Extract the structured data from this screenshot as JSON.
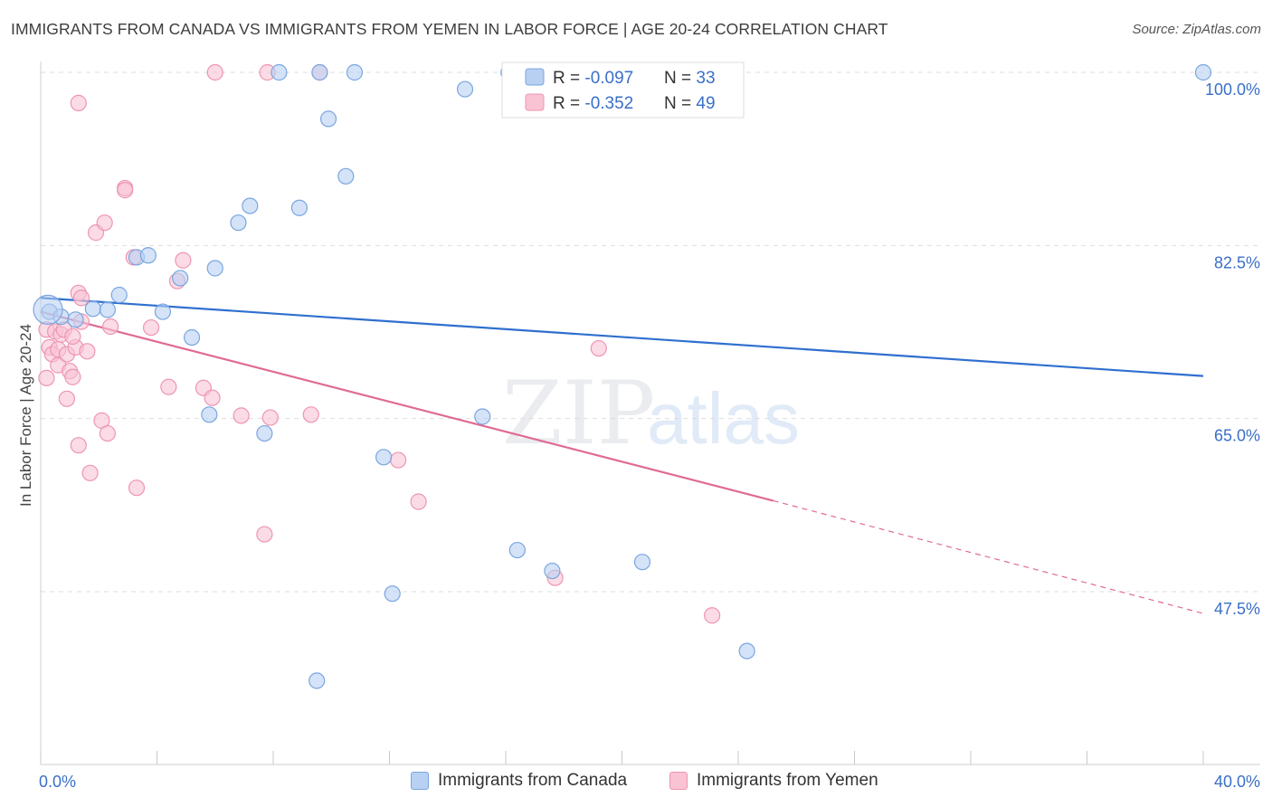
{
  "header": {
    "title": "IMMIGRANTS FROM CANADA VS IMMIGRANTS FROM YEMEN IN LABOR FORCE | AGE 20-24 CORRELATION CHART",
    "source": "Source: ZipAtlas.com"
  },
  "watermark": {
    "zip": "ZIP",
    "atlas": "atlas"
  },
  "legend_top": {
    "canada": {
      "r_label": "R = ",
      "r_value": "-0.097",
      "n_label": "N = ",
      "n_value": "33"
    },
    "yemen": {
      "r_label": "R = ",
      "r_value": "-0.352",
      "n_label": "N = ",
      "n_value": "49"
    }
  },
  "legend_bottom": {
    "canada": "Immigrants from Canada",
    "yemen": "Immigrants from Yemen"
  },
  "colors": {
    "canada_fill": "#b8d0f2",
    "canada_stroke": "#7aa6e0",
    "canada_line": "#2f6fcf",
    "yemen_fill": "#f9c3d4",
    "yemen_stroke": "#ee95b2",
    "yemen_line": "#e06a93",
    "tick_label": "#3a6fc8",
    "grid": "#dddddd"
  },
  "chart_data": {
    "type": "scatter",
    "title": "IMMIGRANTS FROM CANADA VS IMMIGRANTS FROM YEMEN IN LABOR FORCE | AGE 20-24 CORRELATION CHART",
    "xlabel": "",
    "ylabel": "In Labor Force | Age 20-24",
    "xlim": [
      0,
      40
    ],
    "ylim": [
      30,
      102
    ],
    "x_tick_labels": [
      "0.0%",
      "40.0%"
    ],
    "y_ticks": [
      47.5,
      65.0,
      82.5,
      100.0
    ],
    "y_tick_labels": [
      "47.5%",
      "65.0%",
      "82.5%",
      "100.0%"
    ],
    "grid": true,
    "legend_position": "top-center",
    "series": [
      {
        "name": "Immigrants from Canada",
        "r": -0.097,
        "n": 33,
        "trend": {
          "x": [
            0,
            40
          ],
          "y": [
            77.2,
            69.3
          ]
        },
        "points": [
          [
            0.3,
            75.8
          ],
          [
            0.7,
            75.3
          ],
          [
            1.2,
            75.0
          ],
          [
            1.8,
            76.1
          ],
          [
            2.3,
            76.0
          ],
          [
            2.7,
            77.5
          ],
          [
            3.3,
            81.3
          ],
          [
            3.7,
            81.5
          ],
          [
            4.2,
            75.8
          ],
          [
            4.8,
            79.2
          ],
          [
            5.2,
            73.2
          ],
          [
            5.8,
            65.4
          ],
          [
            6.0,
            80.2
          ],
          [
            6.8,
            84.8
          ],
          [
            7.2,
            86.5
          ],
          [
            7.7,
            63.5
          ],
          [
            8.2,
            100.0
          ],
          [
            8.9,
            86.3
          ],
          [
            9.5,
            38.5
          ],
          [
            9.6,
            100.0
          ],
          [
            9.9,
            95.3
          ],
          [
            10.5,
            89.5
          ],
          [
            10.8,
            100.0
          ],
          [
            11.8,
            61.1
          ],
          [
            12.1,
            47.3
          ],
          [
            14.6,
            98.3
          ],
          [
            15.2,
            65.2
          ],
          [
            16.1,
            100.0
          ],
          [
            16.4,
            51.7
          ],
          [
            17.6,
            49.6
          ],
          [
            20.7,
            50.5
          ],
          [
            24.3,
            41.5
          ],
          [
            40.0,
            100.0
          ]
        ]
      },
      {
        "name": "Immigrants from Yemen",
        "r": -0.352,
        "n": 49,
        "trend": {
          "x": [
            0,
            25.2
          ],
          "y": [
            75.8,
            56.7
          ]
        },
        "trend_extension": {
          "x": [
            25.2,
            40
          ],
          "y": [
            56.7,
            45.3
          ]
        },
        "points": [
          [
            0.2,
            74.0
          ],
          [
            0.2,
            69.1
          ],
          [
            0.3,
            72.2
          ],
          [
            0.4,
            71.5
          ],
          [
            0.5,
            73.8
          ],
          [
            0.6,
            72.0
          ],
          [
            0.6,
            70.4
          ],
          [
            0.7,
            73.5
          ],
          [
            0.8,
            74.0
          ],
          [
            0.9,
            71.5
          ],
          [
            0.9,
            67.0
          ],
          [
            1.0,
            69.8
          ],
          [
            1.1,
            69.2
          ],
          [
            1.2,
            72.2
          ],
          [
            1.3,
            62.3
          ],
          [
            1.3,
            96.9
          ],
          [
            1.3,
            77.7
          ],
          [
            1.4,
            77.2
          ],
          [
            1.4,
            74.8
          ],
          [
            1.6,
            71.8
          ],
          [
            1.7,
            59.5
          ],
          [
            1.9,
            83.8
          ],
          [
            2.1,
            64.8
          ],
          [
            2.2,
            84.8
          ],
          [
            2.3,
            63.5
          ],
          [
            2.4,
            74.3
          ],
          [
            2.9,
            88.3
          ],
          [
            2.9,
            88.1
          ],
          [
            3.2,
            81.3
          ],
          [
            3.3,
            58.0
          ],
          [
            3.8,
            74.2
          ],
          [
            4.4,
            68.2
          ],
          [
            4.7,
            78.9
          ],
          [
            4.9,
            81.0
          ],
          [
            5.6,
            68.1
          ],
          [
            5.9,
            67.1
          ],
          [
            6.0,
            100.0
          ],
          [
            6.9,
            65.3
          ],
          [
            7.7,
            53.3
          ],
          [
            7.8,
            100.0
          ],
          [
            7.9,
            65.1
          ],
          [
            9.6,
            100.0
          ],
          [
            9.3,
            65.4
          ],
          [
            12.3,
            60.8
          ],
          [
            13.0,
            56.6
          ],
          [
            17.7,
            48.9
          ],
          [
            19.2,
            72.1
          ],
          [
            23.1,
            45.1
          ],
          [
            1.1,
            73.3
          ]
        ]
      }
    ]
  }
}
